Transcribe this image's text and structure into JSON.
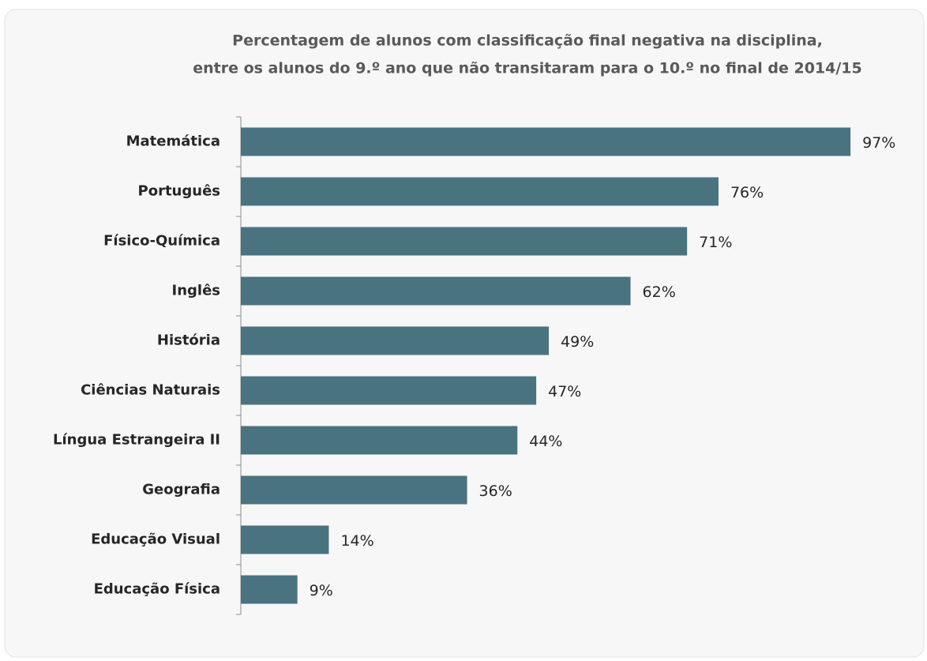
{
  "chart_data": {
    "type": "bar",
    "orientation": "horizontal",
    "title": [
      "Percentagem de alunos com classificação final negativa na disciplina,",
      "entre os alunos do 9.º ano que não transitaram para o 10.º no final de 2014/15"
    ],
    "categories": [
      "Matemática",
      "Português",
      "Físico-Química",
      "Inglês",
      "História",
      "Ciências Naturais",
      "Língua Estrangeira II",
      "Geografia",
      "Educação Visual",
      "Educação Física"
    ],
    "values": [
      97,
      76,
      71,
      62,
      49,
      47,
      44,
      36,
      14,
      9
    ],
    "value_labels": [
      "97%",
      "76%",
      "71%",
      "62%",
      "49%",
      "47%",
      "44%",
      "36%",
      "14%",
      "9%"
    ],
    "color": "#4a7380",
    "xlim": [
      0,
      100
    ]
  }
}
